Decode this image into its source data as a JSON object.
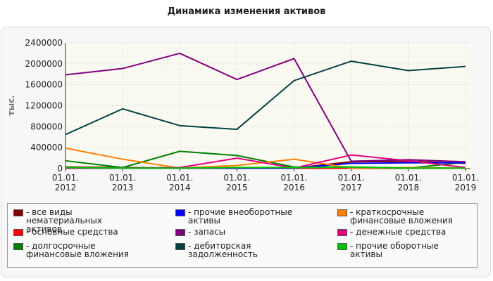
{
  "chart_data": {
    "type": "line",
    "title": "Динамика изменения активов",
    "y_label": "тыс.",
    "categories": [
      "01.01.\n2012",
      "01.01.\n2013",
      "01.01.\n2014",
      "01.01.\n2015",
      "01.01.\n2016",
      "01.01.\n2017",
      "01.01.\n2018",
      "01.01.\n2019"
    ],
    "ylim": [
      0,
      2400000
    ],
    "yticks": [
      0,
      400000,
      800000,
      1200000,
      1600000,
      2000000,
      2400000
    ],
    "grid": true,
    "series": [
      {
        "name": "все виды нематериальных активов",
        "color": "#800000",
        "values": [
          30000,
          20000,
          10000,
          20000,
          10000,
          130000,
          140000,
          100000
        ]
      },
      {
        "name": "основные средства",
        "color": "#ff0000",
        "values": [
          10000,
          10000,
          10000,
          10000,
          10000,
          10000,
          10000,
          10000
        ]
      },
      {
        "name": "долгосрочные финансовые вложения",
        "color": "#008000",
        "values": [
          150000,
          20000,
          330000,
          250000,
          30000,
          30000,
          10000,
          120000
        ]
      },
      {
        "name": "прочие внеоборотные активы",
        "color": "#0000ff",
        "values": [
          10000,
          10000,
          10000,
          10000,
          10000,
          100000,
          110000,
          110000
        ]
      },
      {
        "name": "запасы",
        "color": "#800080",
        "values": [
          1790000,
          1910000,
          2200000,
          1700000,
          2100000,
          140000,
          170000,
          130000
        ]
      },
      {
        "name": "дебиторская задолженность",
        "color": "#004040",
        "values": [
          650000,
          1140000,
          820000,
          750000,
          1680000,
          2050000,
          1870000,
          1950000
        ]
      },
      {
        "name": "краткосрочные финансовые вложения",
        "color": "#ff8000",
        "values": [
          390000,
          180000,
          10000,
          60000,
          180000,
          10000,
          20000,
          10000
        ]
      },
      {
        "name": "денежные средства",
        "color": "#e0007f",
        "values": [
          10000,
          10000,
          20000,
          200000,
          10000,
          260000,
          150000,
          20000
        ]
      },
      {
        "name": "прочие оборотные активы",
        "color": "#00c000",
        "values": [
          20000,
          10000,
          10000,
          20000,
          20000,
          30000,
          10000,
          10000
        ]
      }
    ]
  }
}
